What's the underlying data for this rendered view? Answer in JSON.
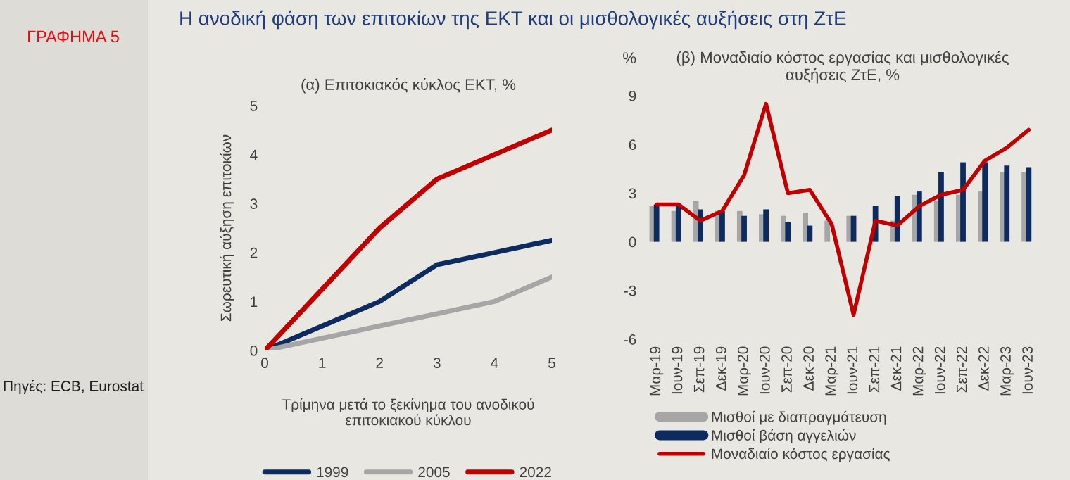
{
  "chart_data": [
    {
      "type": "line",
      "title": "(α) Επιτοκιακός κύκλος ΕΚΤ, %",
      "xlabel": "Τρίμηνα μετά το ξεκίνημα του ανοδικού\nεπιτοκιακού κύκλου",
      "ylabel": "Σωρευτική αύξηση επιτοκίων",
      "annotations": [
        "ΓΡΑΦΗΜΑ 5",
        "Η ανοδική φάση των επιτοκίων της ΕΚΤ και οι μισθολογικές αυξήσεις στη ΖτΕ",
        "Πηγές: ECB, Eurostat"
      ],
      "x": [
        0,
        1,
        2,
        3,
        4,
        5
      ],
      "series": [
        {
          "name": "1999",
          "color": "#0d2b5e",
          "values": [
            0,
            0.5,
            1.0,
            1.75,
            2.0,
            2.25
          ]
        },
        {
          "name": "2005",
          "color": "#a6a6a6",
          "values": [
            0,
            0.25,
            0.5,
            0.75,
            1.0,
            1.5
          ]
        },
        {
          "name": "2022",
          "color": "#c00000",
          "values": [
            0,
            1.25,
            2.5,
            3.5,
            4.0,
            4.5
          ]
        }
      ],
      "xlim": [
        0,
        5
      ],
      "xticks": [
        0,
        1,
        2,
        3,
        4,
        5
      ],
      "ylim": [
        0,
        5
      ],
      "yticks": [
        0,
        1,
        2,
        3,
        4,
        5
      ],
      "legend": "bottom"
    },
    {
      "type": "bar",
      "title": "(β) Μοναδιαίο κόστος εργασίας και μισθολογικές\nαυξήσεις ΖτΕ, %",
      "ylabel": "%",
      "categories": [
        "Μαρ-19",
        "Ιουν-19",
        "Σεπ-19",
        "Δεκ-19",
        "Μαρ-20",
        "Ιουν-20",
        "Σεπ-20",
        "Δεκ-20",
        "Μαρ-21",
        "Ιουν-21",
        "Σεπ-21",
        "Δεκ-21",
        "Μαρ-22",
        "Ιουν-22",
        "Σεπ-22",
        "Δεκ-22",
        "Μαρ-23",
        "Ιουν-23"
      ],
      "series": [
        {
          "name": "Μισθοί με διαπραγμάτευση",
          "type": "bar",
          "color": "#a6a6a6",
          "values": [
            2.2,
            1.9,
            2.5,
            1.9,
            1.9,
            1.7,
            1.6,
            1.8,
            1.3,
            1.6,
            null,
            1.3,
            2.9,
            2.5,
            2.9,
            3.1,
            4.3,
            4.3
          ]
        },
        {
          "name": "Μισθοί βάση αγγελιών",
          "type": "bar",
          "color": "#0d2b5e",
          "values": [
            2.3,
            2.3,
            2.0,
            1.9,
            1.6,
            2.0,
            1.2,
            1.0,
            null,
            1.6,
            2.2,
            2.8,
            3.1,
            4.3,
            4.9,
            4.9,
            4.7,
            4.6
          ]
        },
        {
          "name": "Μοναδιαίο κόστος εργασίας",
          "type": "line",
          "color": "#c00000",
          "values": [
            2.3,
            2.3,
            1.3,
            1.9,
            4.1,
            8.5,
            3.0,
            3.2,
            1.1,
            -4.5,
            1.3,
            1.0,
            2.2,
            2.9,
            3.2,
            5.0,
            5.8,
            6.9
          ]
        }
      ],
      "ylim": [
        -6,
        9
      ],
      "yticks": [
        -6,
        -3,
        0,
        3,
        6,
        9
      ],
      "legend": "bottom"
    }
  ]
}
